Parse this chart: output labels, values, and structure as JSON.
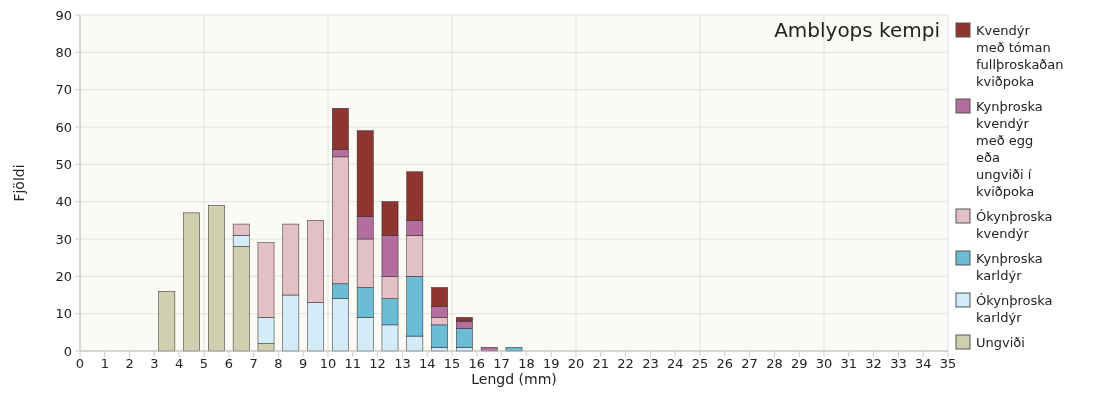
{
  "chart_data": {
    "type": "bar",
    "stacked": true,
    "title": "Amblyops kempi",
    "xlabel": "Lengd (mm)",
    "ylabel": "Fjöldi",
    "x": [
      3.5,
      4.5,
      5.5,
      6.5,
      7.5,
      8.5,
      9.5,
      10.5,
      11.5,
      12.5,
      13.5,
      14.5,
      15.5,
      16.5,
      17.5
    ],
    "series": [
      {
        "name": "Ungviði",
        "color": "#d0d0b0",
        "values": [
          16,
          37,
          39,
          28,
          2,
          null,
          null,
          null,
          null,
          null,
          null,
          null,
          null,
          null,
          null
        ]
      },
      {
        "name": "Ókynþroska karldýr",
        "color": "#d4ecf8",
        "values": [
          null,
          null,
          null,
          3,
          7,
          15,
          13,
          14,
          9,
          7,
          4,
          1,
          1,
          null,
          null
        ]
      },
      {
        "name": "Kynþroska karldýr",
        "color": "#6bbdd6",
        "values": [
          null,
          null,
          null,
          null,
          null,
          null,
          null,
          4,
          8,
          7,
          16,
          6,
          5,
          null,
          1
        ]
      },
      {
        "name": "Ókynþroska kvendýr",
        "color": "#e2c0c6",
        "values": [
          null,
          null,
          null,
          3,
          20,
          19,
          22,
          34,
          13,
          6,
          11,
          2,
          null,
          null,
          null
        ]
      },
      {
        "name": "Kynþroska kvendýr með egg eða ungviði í kviðpoka",
        "color": "#b46e9e",
        "values": [
          null,
          null,
          null,
          null,
          null,
          null,
          null,
          2,
          6,
          11,
          4,
          3,
          2,
          1,
          null
        ]
      },
      {
        "name": "Kvendýr með tóman fullþroskaðan kviðpoka",
        "color": "#8e3530",
        "values": [
          null,
          null,
          null,
          null,
          null,
          null,
          null,
          11,
          23,
          9,
          13,
          5,
          1,
          null,
          null
        ]
      }
    ],
    "xlim": [
      0,
      35
    ],
    "xticks": [
      0,
      1,
      2,
      3,
      4,
      5,
      6,
      7,
      8,
      9,
      10,
      11,
      12,
      13,
      14,
      15,
      16,
      17,
      18,
      19,
      20,
      21,
      22,
      23,
      24,
      25,
      26,
      27,
      28,
      29,
      30,
      31,
      32,
      33,
      34,
      35
    ],
    "ylim": [
      0,
      90
    ],
    "yticks": [
      0,
      10,
      20,
      30,
      40,
      50,
      60,
      70,
      80,
      90
    ],
    "grid": true,
    "legend": "right"
  }
}
